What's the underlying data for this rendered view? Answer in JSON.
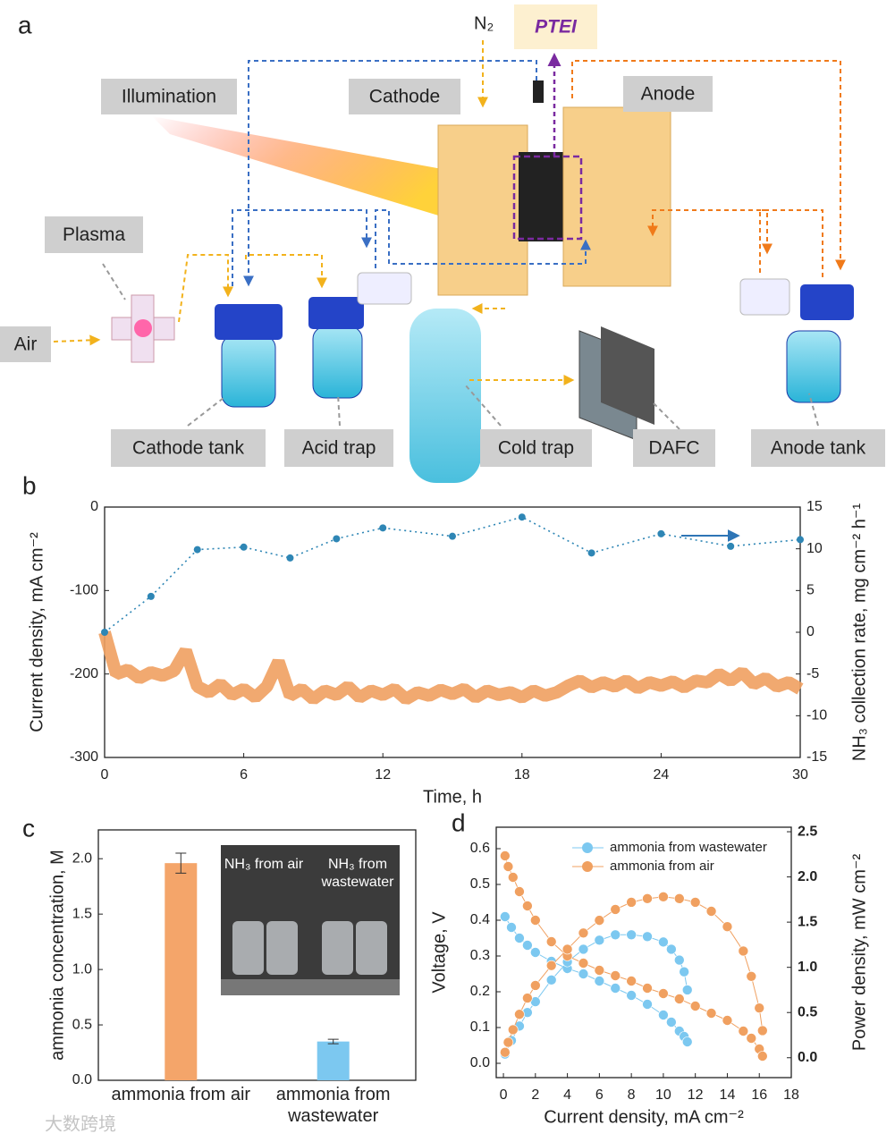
{
  "panel_a": {
    "label": "a",
    "labels": {
      "n2": "N₂",
      "ptei": "PTEI",
      "illumination": "Illumination",
      "cathode": "Cathode",
      "anode": "Anode",
      "plasma": "Plasma",
      "air": "Air",
      "cathode_tank": "Cathode tank",
      "acid_trap": "Acid trap",
      "cold_trap": "Cold trap",
      "dafc": "DAFC",
      "anode_tank": "Anode tank"
    }
  },
  "chart_data": [
    {
      "type": "line",
      "panel": "b",
      "xlabel": "Time, h",
      "ylabel": "Current density, mA cm⁻²",
      "y2label": "NH₃ collection rate, mg cm⁻² h⁻¹",
      "xlim": [
        0,
        30
      ],
      "xticks": [
        0,
        6,
        12,
        18,
        24,
        30
      ],
      "ylim": [
        -300,
        0
      ],
      "yticks": [
        -300,
        -200,
        -100,
        0
      ],
      "y2lim": [
        -15,
        15
      ],
      "y2ticks": [
        -15,
        -10,
        -5,
        0,
        5,
        10,
        15
      ],
      "series": [
        {
          "color": "#f0a060",
          "x": [
            0,
            0.5,
            1,
            1.5,
            2,
            2.5,
            3,
            3.5,
            4,
            4.5,
            5,
            5.5,
            6,
            6.5,
            7,
            7.5,
            8,
            8.5,
            9,
            9.5,
            10,
            10.5,
            11,
            11.5,
            12,
            12.5,
            13,
            13.5,
            14,
            14.5,
            15,
            15.5,
            16,
            16.5,
            17,
            17.5,
            18,
            18.5,
            19,
            19.5,
            20,
            20.5,
            21,
            21.5,
            22,
            22.5,
            23,
            23.5,
            24,
            24.5,
            25,
            25.5,
            26,
            26.5,
            27,
            27.5,
            28,
            28.5,
            29,
            29.5,
            30
          ],
          "values": [
            -150,
            -200,
            -195,
            -205,
            -198,
            -202,
            -196,
            -172,
            -215,
            -222,
            -212,
            -225,
            -218,
            -228,
            -215,
            -185,
            -226,
            -218,
            -230,
            -220,
            -225,
            -215,
            -228,
            -220,
            -225,
            -218,
            -230,
            -222,
            -226,
            -219,
            -224,
            -218,
            -228,
            -220,
            -225,
            -222,
            -228,
            -220,
            -226,
            -222,
            -214,
            -208,
            -216,
            -210,
            -215,
            -208,
            -217,
            -210,
            -214,
            -209,
            -216,
            -208,
            -210,
            -200,
            -208,
            -198,
            -212,
            -205,
            -215,
            -210,
            -218
          ]
        },
        {
          "color": "#2e86b5",
          "axis": "y2",
          "x": [
            0,
            2,
            4,
            6,
            8,
            10,
            12,
            15,
            18,
            21,
            24,
            27,
            30
          ],
          "values": [
            0,
            4.3,
            9.9,
            10.2,
            8.9,
            11.2,
            12.5,
            11.5,
            13.8,
            9.5,
            11.8,
            10.3,
            11.1
          ]
        }
      ]
    },
    {
      "type": "bar",
      "panel": "c",
      "ylabel": "ammonia concentration, M",
      "categories": [
        "ammonia from air",
        "ammonia from wastewater"
      ],
      "values": [
        1.96,
        0.35
      ],
      "errors": [
        0.09,
        0.02
      ],
      "colors": [
        "#f4a56a",
        "#7cc8f0"
      ],
      "ylim": [
        0,
        2.26
      ],
      "yticks": [
        {
          "value": 0,
          "label": "0.0"
        },
        {
          "value": 0.5,
          "label": "0.5"
        },
        {
          "value": 1,
          "label": "1.0"
        },
        {
          "value": 1.5,
          "label": "1.5"
        },
        {
          "value": 2,
          "label": "2.0"
        }
      ],
      "inset": {
        "labels": [
          "NH₃ from air",
          "NH₃ from wastewater"
        ]
      }
    },
    {
      "type": "scatter",
      "panel": "d",
      "xlabel": "Current density, mA cm⁻²",
      "ylabel": "Voltage, V",
      "y2label": "Power density, mW cm⁻²",
      "legend": "upper right",
      "xlim": [
        -0.45,
        18
      ],
      "xticks": [
        0,
        2,
        4,
        6,
        8,
        10,
        12,
        14,
        16,
        18
      ],
      "ylim": [
        -0.04,
        0.66
      ],
      "yticks": [
        {
          "value": 0,
          "label": "0.0"
        },
        0.1,
        0.2,
        0.3,
        0.4,
        0.5,
        0.6
      ],
      "y2lim": [
        -0.22,
        2.55
      ],
      "y2ticks": [
        {
          "value": 0,
          "label": "0.0"
        },
        0.5,
        {
          "value": 1,
          "label": "1.0"
        },
        1.5,
        {
          "value": 2,
          "label": "2.0"
        },
        2.5
      ],
      "series": [
        {
          "name": "ammonia from wastewater",
          "color": "#7cc8f0",
          "x": [
            0.1,
            0.5,
            1,
            1.5,
            2,
            3,
            4,
            5,
            6,
            7,
            8,
            9,
            10,
            10.5,
            11,
            11.3,
            11.5
          ],
          "values": [
            0.41,
            0.38,
            0.35,
            0.33,
            0.31,
            0.285,
            0.265,
            0.25,
            0.23,
            0.21,
            0.19,
            0.165,
            0.135,
            0.115,
            0.09,
            0.075,
            0.06
          ],
          "power": [
            0.04,
            0.19,
            0.35,
            0.5,
            0.62,
            0.86,
            1.06,
            1.2,
            1.3,
            1.36,
            1.36,
            1.34,
            1.28,
            1.2,
            1.08,
            0.95,
            0.75
          ]
        },
        {
          "name": "ammonia from air",
          "color": "#f0a060",
          "x": [
            0.1,
            0.3,
            0.6,
            1,
            1.5,
            2,
            3,
            4,
            5,
            6,
            7,
            8,
            9,
            10,
            11,
            12,
            13,
            14,
            15,
            15.5,
            16,
            16.2
          ],
          "values": [
            0.58,
            0.55,
            0.52,
            0.48,
            0.44,
            0.4,
            0.34,
            0.3,
            0.28,
            0.26,
            0.245,
            0.23,
            0.21,
            0.195,
            0.18,
            0.16,
            0.14,
            0.12,
            0.09,
            0.07,
            0.04,
            0.02
          ],
          "power": [
            0.06,
            0.17,
            0.31,
            0.48,
            0.66,
            0.8,
            1.02,
            1.2,
            1.38,
            1.52,
            1.64,
            1.72,
            1.76,
            1.78,
            1.76,
            1.72,
            1.62,
            1.45,
            1.18,
            0.9,
            0.55,
            0.3
          ]
        }
      ]
    }
  ],
  "watermark": "大数跨境"
}
